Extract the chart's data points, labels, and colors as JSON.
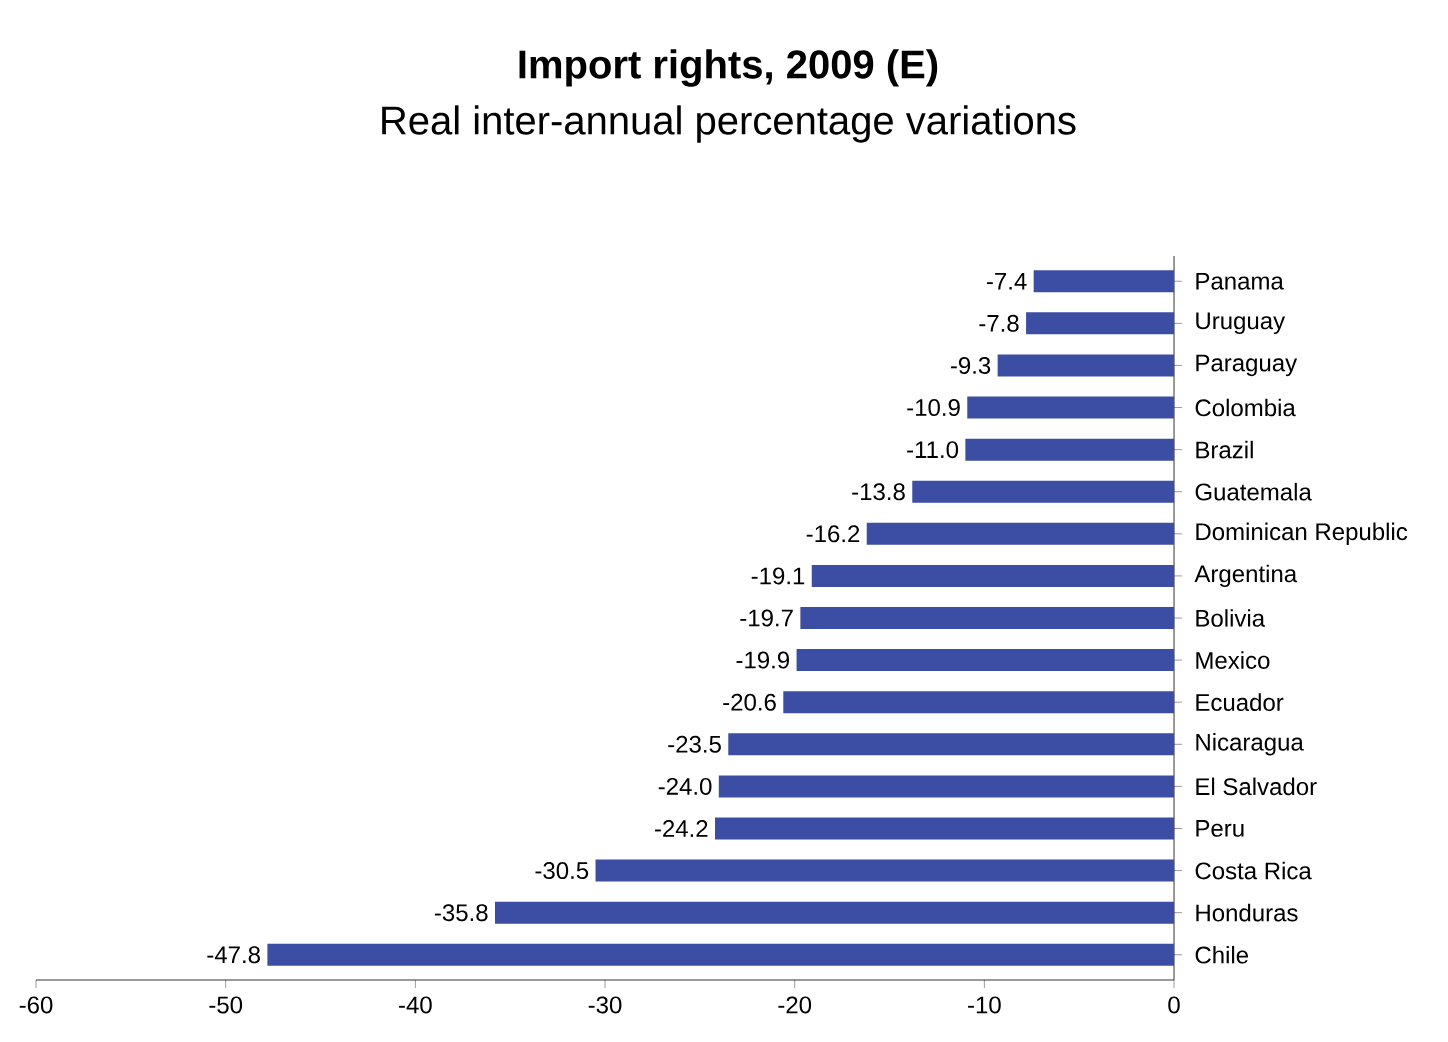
{
  "chart_data": {
    "type": "bar",
    "orientation": "horizontal",
    "title": "Import rights, 2009 (E)",
    "subtitle": "Real inter-annual percentage variations",
    "categories": [
      "Panama",
      "Uruguay",
      "Paraguay",
      "Colombia",
      "Brazil",
      "Guatemala",
      "Dominican Republic",
      "Argentina",
      "Bolivia",
      "Mexico",
      "Ecuador",
      "Nicaragua",
      "El Salvador",
      "Peru",
      "Costa Rica",
      "Honduras",
      "Chile"
    ],
    "values": [
      -7.4,
      -7.8,
      -9.3,
      -10.9,
      -11.0,
      -13.8,
      -16.2,
      -19.1,
      -19.7,
      -19.9,
      -20.6,
      -23.5,
      -24.0,
      -24.2,
      -30.5,
      -35.8,
      -47.8
    ],
    "value_labels": [
      "-7.4",
      "-7.8",
      "-9.3",
      "-10.9",
      "-11.0",
      "-13.8",
      "-16.2",
      "-19.1",
      "-19.7",
      "-19.9",
      "-20.6",
      "-23.5",
      "-24.0",
      "-24.2",
      "-30.5",
      "-35.8",
      "-47.8"
    ],
    "color": "#3b4ea3",
    "xlim": [
      -60,
      0
    ],
    "xticks": [
      -60,
      -50,
      -40,
      -30,
      -20,
      -10,
      0
    ]
  }
}
